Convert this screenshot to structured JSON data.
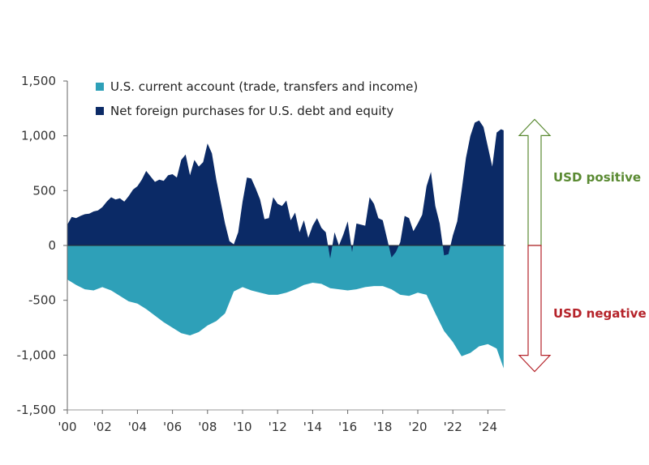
{
  "chart_data": {
    "type": "area",
    "title": "",
    "xlabel": "",
    "ylabel": "",
    "xlim": [
      2000,
      2025
    ],
    "ylim": [
      -1500,
      1500
    ],
    "yticks": [
      1500,
      1000,
      500,
      0,
      -500,
      -1000,
      -1500
    ],
    "ytick_labels": [
      "1,500",
      "1,000",
      "500",
      "0",
      "-500",
      "-1,000",
      "-1,500"
    ],
    "xticks": [
      2000,
      2002,
      2004,
      2006,
      2008,
      2010,
      2012,
      2014,
      2016,
      2018,
      2020,
      2022,
      2024
    ],
    "xtick_labels": [
      "'00",
      "'02",
      "'04",
      "'06",
      "'08",
      "'10",
      "'12",
      "'14",
      "'16",
      "'18",
      "'20",
      "'22",
      "'24"
    ],
    "grid": false,
    "legend_position": "top-left",
    "series": [
      {
        "name": "U.S. current account (trade, transfers and income)",
        "color": "#2ea0b8",
        "points": [
          [
            2000.0,
            -310
          ],
          [
            2000.5,
            -360
          ],
          [
            2001.0,
            -400
          ],
          [
            2001.5,
            -410
          ],
          [
            2002.0,
            -380
          ],
          [
            2002.5,
            -410
          ],
          [
            2003.0,
            -460
          ],
          [
            2003.5,
            -510
          ],
          [
            2004.0,
            -530
          ],
          [
            2004.5,
            -580
          ],
          [
            2005.0,
            -640
          ],
          [
            2005.5,
            -700
          ],
          [
            2006.0,
            -750
          ],
          [
            2006.5,
            -800
          ],
          [
            2007.0,
            -820
          ],
          [
            2007.5,
            -790
          ],
          [
            2008.0,
            -730
          ],
          [
            2008.5,
            -690
          ],
          [
            2009.0,
            -620
          ],
          [
            2009.5,
            -420
          ],
          [
            2010.0,
            -380
          ],
          [
            2010.5,
            -410
          ],
          [
            2011.0,
            -430
          ],
          [
            2011.5,
            -450
          ],
          [
            2012.0,
            -450
          ],
          [
            2012.5,
            -430
          ],
          [
            2013.0,
            -400
          ],
          [
            2013.5,
            -360
          ],
          [
            2014.0,
            -340
          ],
          [
            2014.5,
            -350
          ],
          [
            2015.0,
            -390
          ],
          [
            2015.5,
            -400
          ],
          [
            2016.0,
            -410
          ],
          [
            2016.5,
            -400
          ],
          [
            2017.0,
            -380
          ],
          [
            2017.5,
            -370
          ],
          [
            2018.0,
            -370
          ],
          [
            2018.5,
            -400
          ],
          [
            2019.0,
            -450
          ],
          [
            2019.5,
            -460
          ],
          [
            2020.0,
            -430
          ],
          [
            2020.5,
            -450
          ],
          [
            2021.0,
            -620
          ],
          [
            2021.5,
            -780
          ],
          [
            2022.0,
            -880
          ],
          [
            2022.5,
            -1010
          ],
          [
            2023.0,
            -980
          ],
          [
            2023.5,
            -920
          ],
          [
            2024.0,
            -900
          ],
          [
            2024.5,
            -940
          ],
          [
            2024.9,
            -1120
          ]
        ]
      },
      {
        "name": "Net foreign purchases for U.S. debt and equity",
        "color": "#0b2a66",
        "points": [
          [
            2000.0,
            190
          ],
          [
            2000.25,
            260
          ],
          [
            2000.5,
            250
          ],
          [
            2000.75,
            270
          ],
          [
            2001.0,
            285
          ],
          [
            2001.25,
            290
          ],
          [
            2001.5,
            310
          ],
          [
            2001.75,
            320
          ],
          [
            2002.0,
            350
          ],
          [
            2002.25,
            400
          ],
          [
            2002.5,
            440
          ],
          [
            2002.75,
            420
          ],
          [
            2003.0,
            430
          ],
          [
            2003.25,
            400
          ],
          [
            2003.5,
            450
          ],
          [
            2003.75,
            510
          ],
          [
            2004.0,
            540
          ],
          [
            2004.25,
            600
          ],
          [
            2004.5,
            680
          ],
          [
            2004.75,
            630
          ],
          [
            2005.0,
            580
          ],
          [
            2005.25,
            600
          ],
          [
            2005.5,
            590
          ],
          [
            2005.75,
            640
          ],
          [
            2006.0,
            650
          ],
          [
            2006.25,
            620
          ],
          [
            2006.5,
            780
          ],
          [
            2006.75,
            830
          ],
          [
            2007.0,
            640
          ],
          [
            2007.25,
            780
          ],
          [
            2007.5,
            720
          ],
          [
            2007.75,
            760
          ],
          [
            2008.0,
            930
          ],
          [
            2008.25,
            840
          ],
          [
            2008.5,
            600
          ],
          [
            2008.75,
            400
          ],
          [
            2009.0,
            200
          ],
          [
            2009.25,
            40
          ],
          [
            2009.5,
            10
          ],
          [
            2009.75,
            120
          ],
          [
            2010.0,
            400
          ],
          [
            2010.25,
            620
          ],
          [
            2010.5,
            610
          ],
          [
            2010.75,
            520
          ],
          [
            2011.0,
            420
          ],
          [
            2011.25,
            240
          ],
          [
            2011.5,
            250
          ],
          [
            2011.75,
            440
          ],
          [
            2012.0,
            380
          ],
          [
            2012.25,
            360
          ],
          [
            2012.5,
            410
          ],
          [
            2012.75,
            230
          ],
          [
            2013.0,
            300
          ],
          [
            2013.25,
            120
          ],
          [
            2013.5,
            230
          ],
          [
            2013.75,
            70
          ],
          [
            2014.0,
            180
          ],
          [
            2014.25,
            250
          ],
          [
            2014.5,
            160
          ],
          [
            2014.75,
            120
          ],
          [
            2015.0,
            -120
          ],
          [
            2015.25,
            120
          ],
          [
            2015.5,
            0
          ],
          [
            2015.75,
            100
          ],
          [
            2016.0,
            220
          ],
          [
            2016.25,
            -60
          ],
          [
            2016.5,
            200
          ],
          [
            2016.75,
            190
          ],
          [
            2017.0,
            180
          ],
          [
            2017.25,
            440
          ],
          [
            2017.5,
            380
          ],
          [
            2017.75,
            250
          ],
          [
            2018.0,
            230
          ],
          [
            2018.25,
            60
          ],
          [
            2018.5,
            -110
          ],
          [
            2018.75,
            -60
          ],
          [
            2019.0,
            30
          ],
          [
            2019.25,
            270
          ],
          [
            2019.5,
            250
          ],
          [
            2019.75,
            130
          ],
          [
            2020.0,
            200
          ],
          [
            2020.25,
            280
          ],
          [
            2020.5,
            540
          ],
          [
            2020.75,
            670
          ],
          [
            2021.0,
            360
          ],
          [
            2021.25,
            200
          ],
          [
            2021.5,
            -90
          ],
          [
            2021.75,
            -80
          ],
          [
            2022.0,
            90
          ],
          [
            2022.25,
            220
          ],
          [
            2022.5,
            500
          ],
          [
            2022.75,
            800
          ],
          [
            2023.0,
            1000
          ],
          [
            2023.25,
            1120
          ],
          [
            2023.5,
            1140
          ],
          [
            2023.75,
            1080
          ],
          [
            2024.0,
            900
          ],
          [
            2024.25,
            720
          ],
          [
            2024.5,
            1030
          ],
          [
            2024.75,
            1060
          ],
          [
            2024.9,
            1050
          ]
        ]
      }
    ],
    "annotations": [
      {
        "text": "USD positive",
        "color": "#5a8a32",
        "direction": "up",
        "from": 0,
        "to": 1150
      },
      {
        "text": "USD negative",
        "color": "#b5232a",
        "direction": "down",
        "from": 0,
        "to": -1150
      }
    ]
  }
}
